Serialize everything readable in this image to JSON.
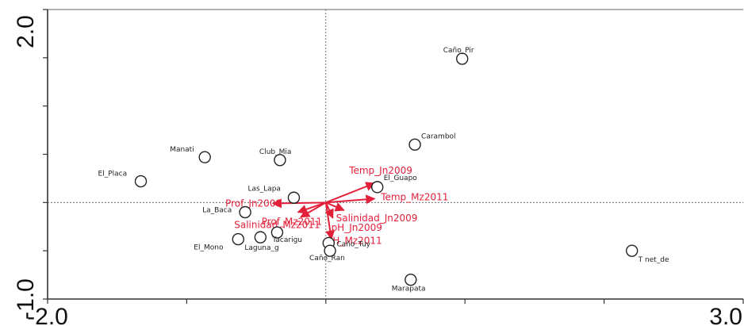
{
  "chart_data": {
    "type": "scatter",
    "xlim": [
      -2.0,
      3.0
    ],
    "ylim": [
      -1.0,
      2.0
    ],
    "x_tick_labels": [
      "-2.0",
      "3.0"
    ],
    "y_tick_labels": [
      "-1.0",
      "2.0"
    ],
    "colors": {
      "sites": "#222222",
      "vectors": "#e3203a",
      "axes": "#333333",
      "zero_lines": "#555555"
    },
    "sites": [
      {
        "label": "Caño_Pir",
        "x": 0.98,
        "y": 1.49
      },
      {
        "label": "Carambol",
        "x": 0.64,
        "y": 0.6
      },
      {
        "label": "Manati",
        "x": -0.87,
        "y": 0.47
      },
      {
        "label": "Club_Mia",
        "x": -0.33,
        "y": 0.44
      },
      {
        "label": "El_Placa",
        "x": -1.33,
        "y": 0.22
      },
      {
        "label": "El_Guapo",
        "x": 0.37,
        "y": 0.16
      },
      {
        "label": "Las_Lapa",
        "x": -0.23,
        "y": 0.05
      },
      {
        "label": "La_Baca",
        "x": -0.58,
        "y": -0.1
      },
      {
        "label": "Tacarigu",
        "x": -0.35,
        "y": -0.31
      },
      {
        "label": "El_Mono",
        "x": -0.63,
        "y": -0.38
      },
      {
        "label": "Laguna_g",
        "x": -0.47,
        "y": -0.36
      },
      {
        "label": "Caño_Tuy",
        "x": 0.02,
        "y": -0.42
      },
      {
        "label": "Caño_Ran",
        "x": 0.03,
        "y": -0.5
      },
      {
        "label": "T net_de",
        "x": 2.2,
        "y": -0.5
      },
      {
        "label": "Marapata",
        "x": 0.61,
        "y": -0.8
      }
    ],
    "vectors": [
      {
        "label": "Temp_Jn2009",
        "x": 0.35,
        "y": 0.2
      },
      {
        "label": "Temp_Mz2011",
        "x": 0.35,
        "y": 0.04
      },
      {
        "label": "Prof_Jn2009",
        "x": -0.38,
        "y": -0.01
      },
      {
        "label": "Prof_Mz2011",
        "x": -0.2,
        "y": -0.1
      },
      {
        "label": "Salinidad_Mz2011",
        "x": -0.18,
        "y": -0.15
      },
      {
        "label": "Salinidad_Jn2009",
        "x": 0.13,
        "y": -0.08
      },
      {
        "label": "pH_Jn2009",
        "x": 0.05,
        "y": -0.16
      },
      {
        "label": "pH_Mz2011",
        "x": 0.04,
        "y": -0.38
      }
    ]
  }
}
